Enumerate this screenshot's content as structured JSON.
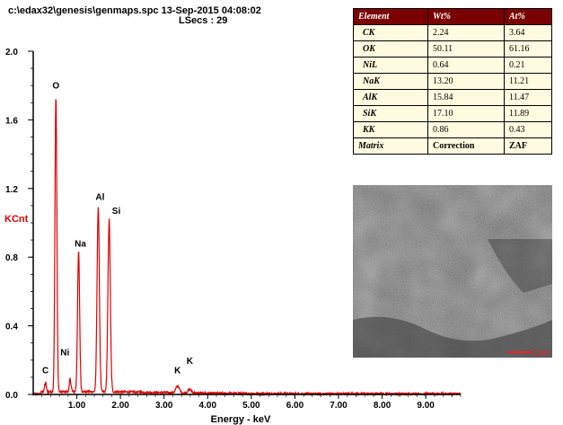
{
  "header": {
    "path_line": "c:\\edax32\\genesis\\genmaps.spc  13-Sep-2015 04:08:02",
    "lsecs_line": "LSecs :  29"
  },
  "chart_data": {
    "type": "line",
    "title": "",
    "xlabel": "Energy - keV",
    "ylabel": "KCnt",
    "xlim": [
      0,
      9.8
    ],
    "ylim": [
      0,
      2.0
    ],
    "x_ticks": [
      "1.00",
      "2.00",
      "3.00",
      "4.00",
      "5.00",
      "6.00",
      "7.00",
      "8.00",
      "9.00"
    ],
    "y_ticks": [
      "0.0",
      "0.4",
      "0.8",
      "1.2",
      "1.6",
      "2.0"
    ],
    "color": "#e00000",
    "peaks": [
      {
        "label": "C",
        "x": 0.28,
        "y": 0.05
      },
      {
        "label": "O",
        "x": 0.52,
        "y": 1.73
      },
      {
        "label": "Ni",
        "x": 0.85,
        "y": 0.07
      },
      {
        "label": "Na",
        "x": 1.04,
        "y": 0.81
      },
      {
        "label": "Al",
        "x": 1.49,
        "y": 1.08
      },
      {
        "label": "Si",
        "x": 1.74,
        "y": 1.0
      },
      {
        "label": "K",
        "x": 3.31,
        "y": 0.04
      },
      {
        "label": "K",
        "x": 3.59,
        "y": 0.02
      }
    ]
  },
  "table": {
    "headers": [
      "Element",
      "Wt%",
      "At%"
    ],
    "rows": [
      {
        "element": "CK",
        "wt": "2.24",
        "at": "3.64"
      },
      {
        "element": "OK",
        "wt": "50.11",
        "at": "61.16"
      },
      {
        "element": "NiL",
        "wt": "0.64",
        "at": "0.21"
      },
      {
        "element": "NaK",
        "wt": "13.20",
        "at": "11.21"
      },
      {
        "element": "AlK",
        "wt": "15.84",
        "at": "11.47"
      },
      {
        "element": "SiK",
        "wt": "17.10",
        "at": "11.89"
      },
      {
        "element": "KK",
        "wt": "0.86",
        "at": "0.43"
      }
    ],
    "matrix": {
      "label": "Matrix",
      "correction": "Correction",
      "method": "ZAF"
    }
  },
  "sem_image": {
    "scale_label": "1.0μm"
  }
}
